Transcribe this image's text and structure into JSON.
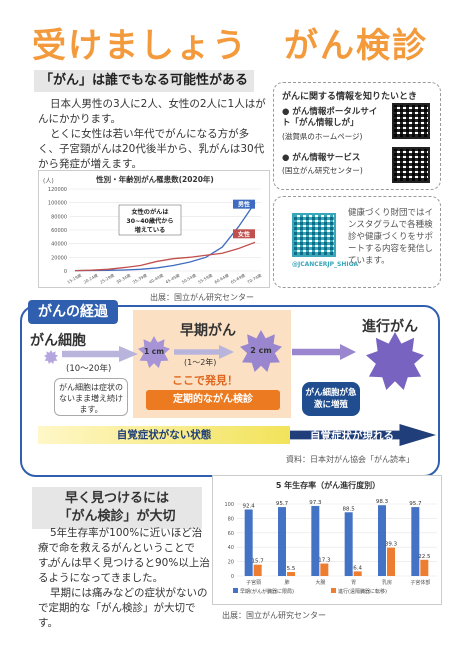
{
  "title": "受けましょう　がん検診",
  "section1": {
    "heading": "「がん」は誰でもなる可能性がある",
    "para1": "日本人男性の3人に2人、女性の2人に1人はがんにかかります。",
    "para2": "とくに女性は若い年代でがんになる方が多く、子宮頸がんは20代後半から、乳がんは30代から発症が増えます。",
    "source": "出展：国立がん研究センター"
  },
  "chart_data": [
    {
      "type": "line",
      "title": "性別・年齢別がん罹患数(2020年)",
      "ylabel": "(人)",
      "categories": [
        "15-19歳",
        "20-24歳",
        "25-29歳",
        "30-34歳",
        "35-39歳",
        "40-44歳",
        "45-49歳",
        "50-54歳",
        "55-59歳",
        "60-64歳",
        "65-69歳",
        "70-74歳"
      ],
      "ylim": [
        0,
        120000
      ],
      "yticks": [
        "0",
        "20000",
        "40000",
        "60000",
        "80000",
        "100000",
        "120000"
      ],
      "series": [
        {
          "name": "男性",
          "color": "#3f6cc0",
          "values": [
            500,
            700,
            1000,
            1500,
            2500,
            4500,
            8000,
            13000,
            20000,
            35000,
            65000,
            100000
          ]
        },
        {
          "name": "女性",
          "color": "#c0504d",
          "values": [
            600,
            1200,
            2500,
            5000,
            8000,
            14000,
            18000,
            20000,
            23000,
            26000,
            33000,
            42000
          ]
        }
      ],
      "annotation": "女性のがんは\n30~40歳代から\n増えている"
    },
    {
      "type": "bar",
      "title": "5 年生存率（がん進行度別）",
      "categories": [
        "子宮頸",
        "肺",
        "大腸",
        "胃",
        "乳房",
        "子宮体部"
      ],
      "ylim": [
        0,
        100
      ],
      "yticks": [
        "0",
        "20",
        "40",
        "60",
        "80",
        "100"
      ],
      "series": [
        {
          "name": "早期(がんが臓器に限局)",
          "color": "#4472c4",
          "values": [
            92.4,
            95.7,
            97.3,
            88.5,
            98.3,
            95.7
          ]
        },
        {
          "name": "進行(遠隔臓器に転移)",
          "color": "#ed7d31",
          "values": [
            15.7,
            5.5,
            17.3,
            6.4,
            39.3,
            22.5
          ]
        }
      ],
      "legend1": "早期(がんが臓器に限局)",
      "legend2": "進行(遠隔臓器に転移)",
      "source": "出展：国立がん研究センター"
    }
  ],
  "info": {
    "heading": "がんに関する情報を知りたいとき",
    "item1_title": "● がん情報ポータルサイト「がん情報しが」",
    "item1_sub": "(滋賀県のホームページ)",
    "item2_title": "● がん情報サービス",
    "item2_sub": "(国立がん研究センター)",
    "insta_text": "健康づくり財団ではインスタグラムで各種検診や健康づくりをサポートする内容を発信しています。",
    "insta_handle": "@JCANCERJP_SHIGA"
  },
  "course": {
    "label": "がんの経過",
    "cell": "がん細胞",
    "cell_years": "(10〜20年)",
    "cell_note": "がん細胞は症状のないまま増え続けます。",
    "early": "早期がん",
    "size1": "1 cm",
    "years2": "(1〜2年)",
    "size2": "2 cm",
    "found": "ここで発見！",
    "checkup": "定期的ながん検診",
    "advanced": "進行がん",
    "rapid": "がん細胞が急激に増殖",
    "no_symptom": "自覚症状がない状態",
    "symptom": "自覚症状が現れる",
    "source": "資料：日本対がん協会「がん読本」"
  },
  "section3": {
    "heading_line1": "早く見つけるには",
    "heading_line2": "「がん検診」が大切",
    "para1": "5年生存率が100%に近いほど治療で命を救えるがんということです。",
    "para2": "がんは早く見つけると90%以上治るようになってきました。",
    "para3": "早期には痛みなどの症状がないので定期的な「がん検診」が大切です。"
  }
}
